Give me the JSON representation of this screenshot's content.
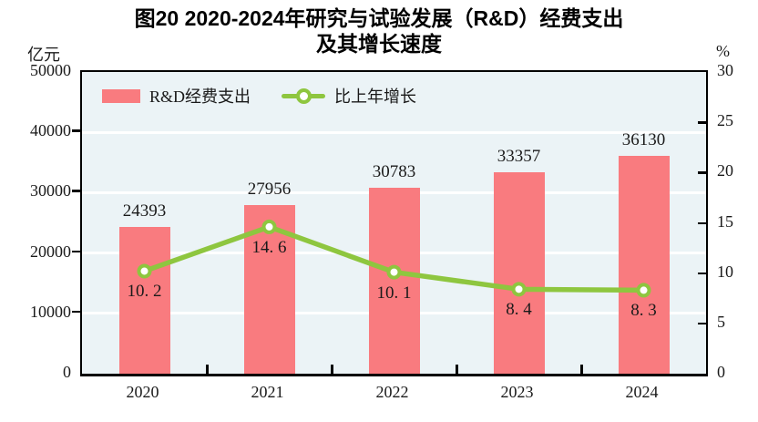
{
  "title": {
    "line1": "图20  2020-2024年研究与试验发展（R&D）经费支出",
    "line2": "及其增长速度"
  },
  "axes": {
    "left_unit": "亿元",
    "right_unit": "%",
    "left_ticks": [
      "0",
      "10000",
      "20000",
      "30000",
      "40000",
      "50000"
    ],
    "right_ticks": [
      "0",
      "5",
      "10",
      "15",
      "20",
      "25",
      "30"
    ]
  },
  "legend": {
    "bar_label": "R&D经费支出",
    "line_label": "比上年增长"
  },
  "chart_data": {
    "type": "bar+line",
    "title": "图20 2020-2024年研究与试验发展（R&D）经费支出及其增长速度",
    "categories": [
      "2020",
      "2021",
      "2022",
      "2023",
      "2024"
    ],
    "series": [
      {
        "name": "R&D经费支出",
        "type": "bar",
        "axis": "left",
        "unit": "亿元",
        "values": [
          24393,
          27956,
          30783,
          33357,
          36130
        ]
      },
      {
        "name": "比上年增长",
        "type": "line",
        "axis": "right",
        "unit": "%",
        "values": [
          10.2,
          14.6,
          10.1,
          8.4,
          8.3
        ]
      }
    ],
    "left_axis": {
      "label": "亿元",
      "range": [
        0,
        50000
      ],
      "tick_step": 10000
    },
    "right_axis": {
      "label": "%",
      "range": [
        0,
        30
      ],
      "tick_step": 5
    },
    "grid": true,
    "legend_position": "top-left-inside"
  },
  "colors": {
    "bar": "#F97B7F",
    "line": "#8EC63F",
    "marker_fill": "#FFFFFF",
    "plot_bg": "#EBF3F6",
    "grid": "#FFFFFF",
    "axis": "#000000",
    "text": "#1A1A1A"
  }
}
